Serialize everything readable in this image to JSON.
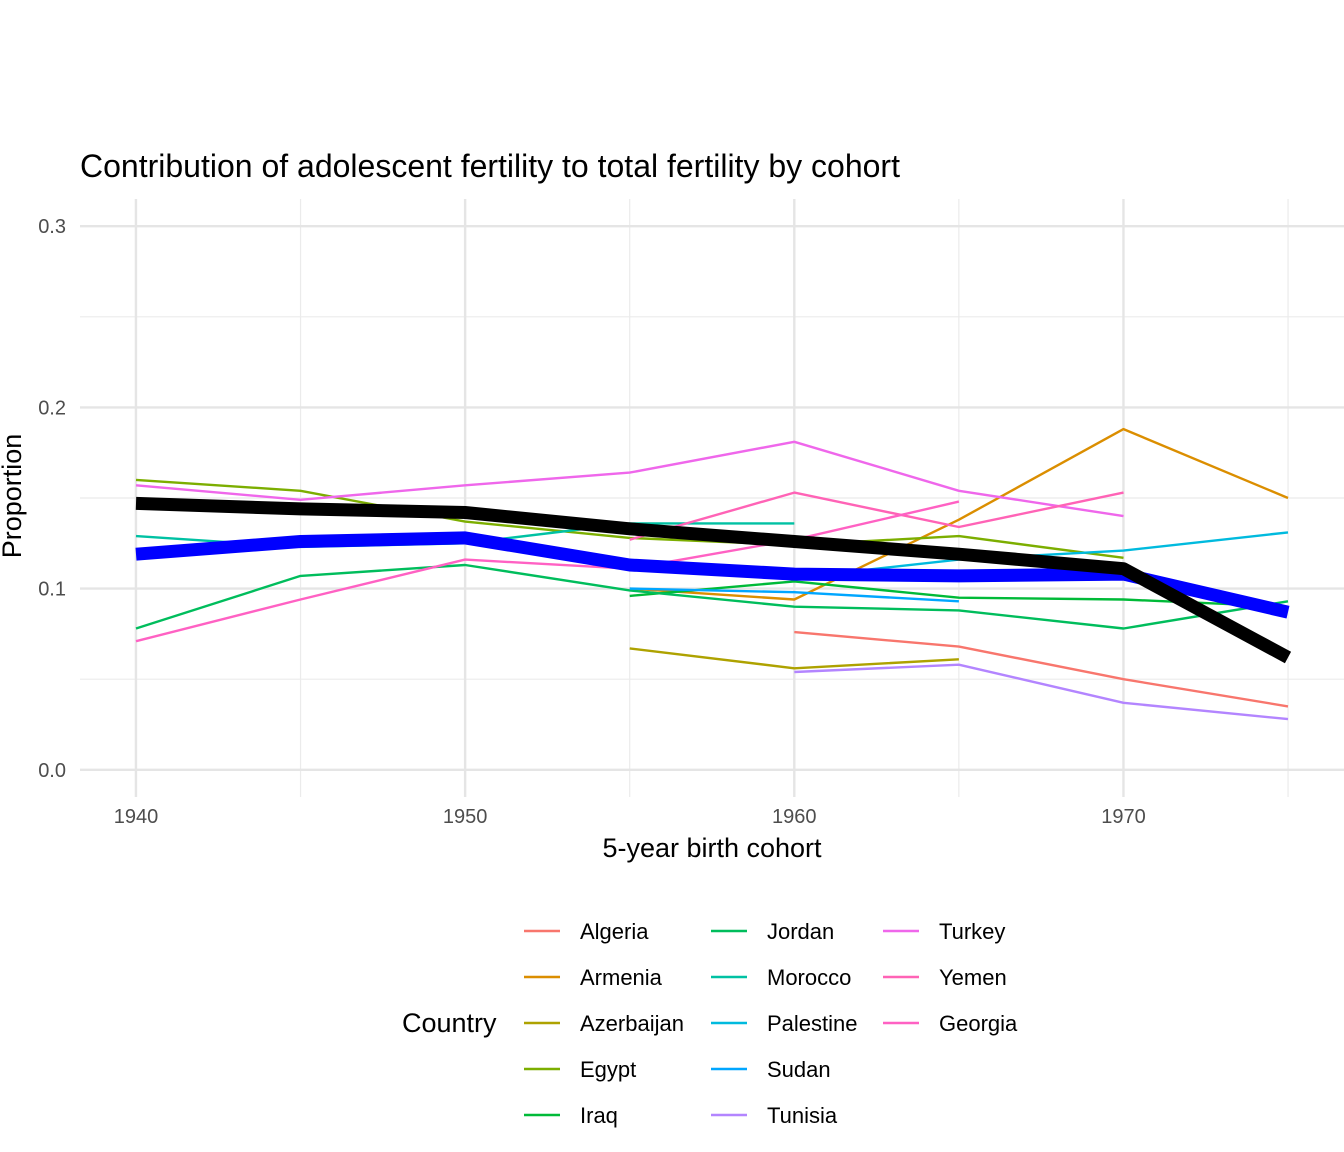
{
  "chart_data": {
    "type": "line",
    "title": "Contribution of adolescent fertility to total fertility by cohort",
    "xlabel": "5-year birth cohort",
    "ylabel": "Proportion",
    "xlim": [
      1938.3,
      1976.7
    ],
    "ylim": [
      -0.015,
      0.315
    ],
    "xticks": [
      1940,
      1950,
      1960,
      1970
    ],
    "yticks": [
      0.0,
      0.1,
      0.2,
      0.3
    ],
    "ytick_labels": [
      "0.0",
      "0.1",
      "0.2",
      "0.3"
    ],
    "grid": true,
    "legend": {
      "title": "Country",
      "position": "bottom"
    },
    "series": [
      {
        "name": "Algeria",
        "color": "#F8766D",
        "x": [
          1960,
          1965,
          1970,
          1975
        ],
        "values": [
          0.076,
          0.068,
          0.05,
          0.035
        ]
      },
      {
        "name": "Armenia",
        "color": "#DB8E00",
        "x": [
          1955,
          1960,
          1965,
          1970,
          1975
        ],
        "values": [
          0.1,
          0.094,
          0.138,
          0.188,
          0.15
        ]
      },
      {
        "name": "Azerbaijan",
        "color": "#AEA200",
        "x": [
          1955,
          1960,
          1965
        ],
        "values": [
          0.067,
          0.056,
          0.061
        ]
      },
      {
        "name": "Egypt",
        "color": "#7CAE00",
        "x": [
          1940,
          1945,
          1950,
          1955,
          1960,
          1965,
          1970
        ],
        "values": [
          0.16,
          0.154,
          0.137,
          0.128,
          0.124,
          0.129,
          0.117
        ]
      },
      {
        "name": "Iraq",
        "color": "#00BA38",
        "x": [
          1955,
          1960,
          1965,
          1970,
          1975
        ],
        "values": [
          0.096,
          0.104,
          0.095,
          0.094,
          0.09
        ]
      },
      {
        "name": "Jordan",
        "color": "#00BD5C",
        "x": [
          1940,
          1945,
          1950,
          1955,
          1960,
          1965,
          1970,
          1975
        ],
        "values": [
          0.078,
          0.107,
          0.113,
          0.099,
          0.09,
          0.088,
          0.078,
          0.093
        ]
      },
      {
        "name": "Morocco",
        "color": "#00C1A3",
        "x": [
          1940,
          1945,
          1950,
          1955,
          1960
        ],
        "values": [
          0.129,
          0.123,
          0.125,
          0.136,
          0.136
        ]
      },
      {
        "name": "Palestine",
        "color": "#00BADE",
        "x": [
          1960,
          1965,
          1970,
          1975
        ],
        "values": [
          0.106,
          0.116,
          0.121,
          0.131
        ]
      },
      {
        "name": "Sudan",
        "color": "#00A6FF",
        "x": [
          1955,
          1960,
          1965
        ],
        "values": [
          0.1,
          0.098,
          0.093
        ]
      },
      {
        "name": "Tunisia",
        "color": "#B385FF",
        "x": [
          1960,
          1965,
          1970,
          1975
        ],
        "values": [
          0.054,
          0.058,
          0.037,
          0.028
        ]
      },
      {
        "name": "Turkey",
        "color": "#EF67EB",
        "x": [
          1940,
          1945,
          1950,
          1955,
          1960,
          1965,
          1970
        ],
        "values": [
          0.157,
          0.149,
          0.157,
          0.164,
          0.181,
          0.154,
          0.14
        ]
      },
      {
        "name": "Yemen",
        "color": "#FF63B6",
        "x": [
          1955,
          1960,
          1965,
          1970
        ],
        "values": [
          0.127,
          0.153,
          0.134,
          0.153
        ]
      },
      {
        "name": "Georgia",
        "color": "#FF61C3",
        "x": [
          1940,
          1945,
          1950,
          1955,
          1960,
          1965
        ],
        "values": [
          0.071,
          0.094,
          0.116,
          0.111,
          0.127,
          0.148
        ]
      },
      {
        "name": "Average (blue)",
        "color": "#0000FF",
        "thick": true,
        "show_in_legend": false,
        "x": [
          1940,
          1945,
          1950,
          1955,
          1960,
          1965,
          1970,
          1975
        ],
        "values": [
          0.119,
          0.126,
          0.128,
          0.113,
          0.108,
          0.107,
          0.108,
          0.087
        ]
      },
      {
        "name": "Average (black)",
        "color": "#000000",
        "thick": true,
        "show_in_legend": false,
        "x": [
          1940,
          1945,
          1950,
          1955,
          1960,
          1965,
          1970,
          1975
        ],
        "values": [
          0.147,
          0.144,
          0.142,
          0.133,
          0.126,
          0.119,
          0.111,
          0.062
        ]
      }
    ]
  }
}
